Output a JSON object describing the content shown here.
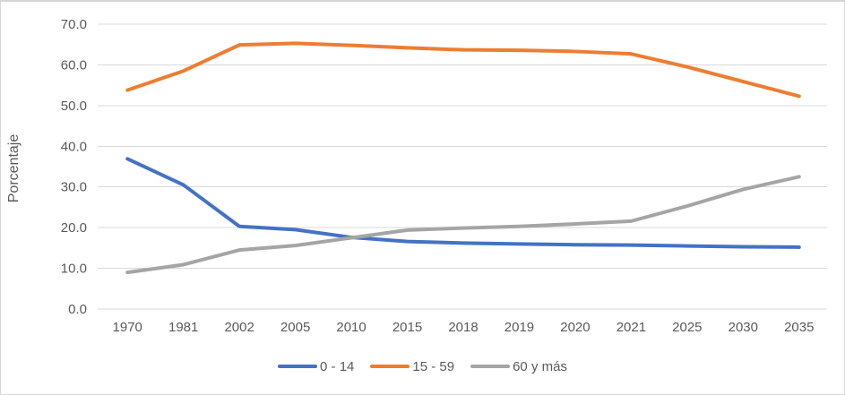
{
  "chart_data": {
    "type": "line",
    "title": "",
    "xlabel": "",
    "ylabel": "Porcentaje",
    "ylim": [
      0,
      70
    ],
    "ytick_step": 10,
    "ytick_decimals": 1,
    "grid": true,
    "legend_position": "bottom",
    "categories": [
      "1970",
      "1981",
      "2002",
      "2005",
      "2010",
      "2015",
      "2018",
      "2019",
      "2020",
      "2021",
      "2025",
      "2030",
      "2035"
    ],
    "series": [
      {
        "name": "0 - 14",
        "color": "#4472C4",
        "values": [
          36.9,
          30.5,
          20.3,
          19.5,
          17.6,
          16.6,
          16.2,
          16.0,
          15.8,
          15.7,
          15.5,
          15.3,
          15.2
        ]
      },
      {
        "name": "15 - 59",
        "color": "#ED7D31",
        "values": [
          53.8,
          58.5,
          64.9,
          65.3,
          64.8,
          64.2,
          63.7,
          63.6,
          63.3,
          62.7,
          59.5,
          55.9,
          52.3
        ]
      },
      {
        "name": "60 y más",
        "color": "#A5A5A5",
        "values": [
          9.0,
          10.9,
          14.5,
          15.6,
          17.5,
          19.4,
          19.9,
          20.3,
          20.9,
          21.6,
          25.3,
          29.4,
          32.5
        ]
      }
    ]
  },
  "colors": {
    "gridline": "#D9D9D9",
    "axis_text": "#595959",
    "border": "#D5D5D5",
    "background": "#FFFFFF"
  }
}
